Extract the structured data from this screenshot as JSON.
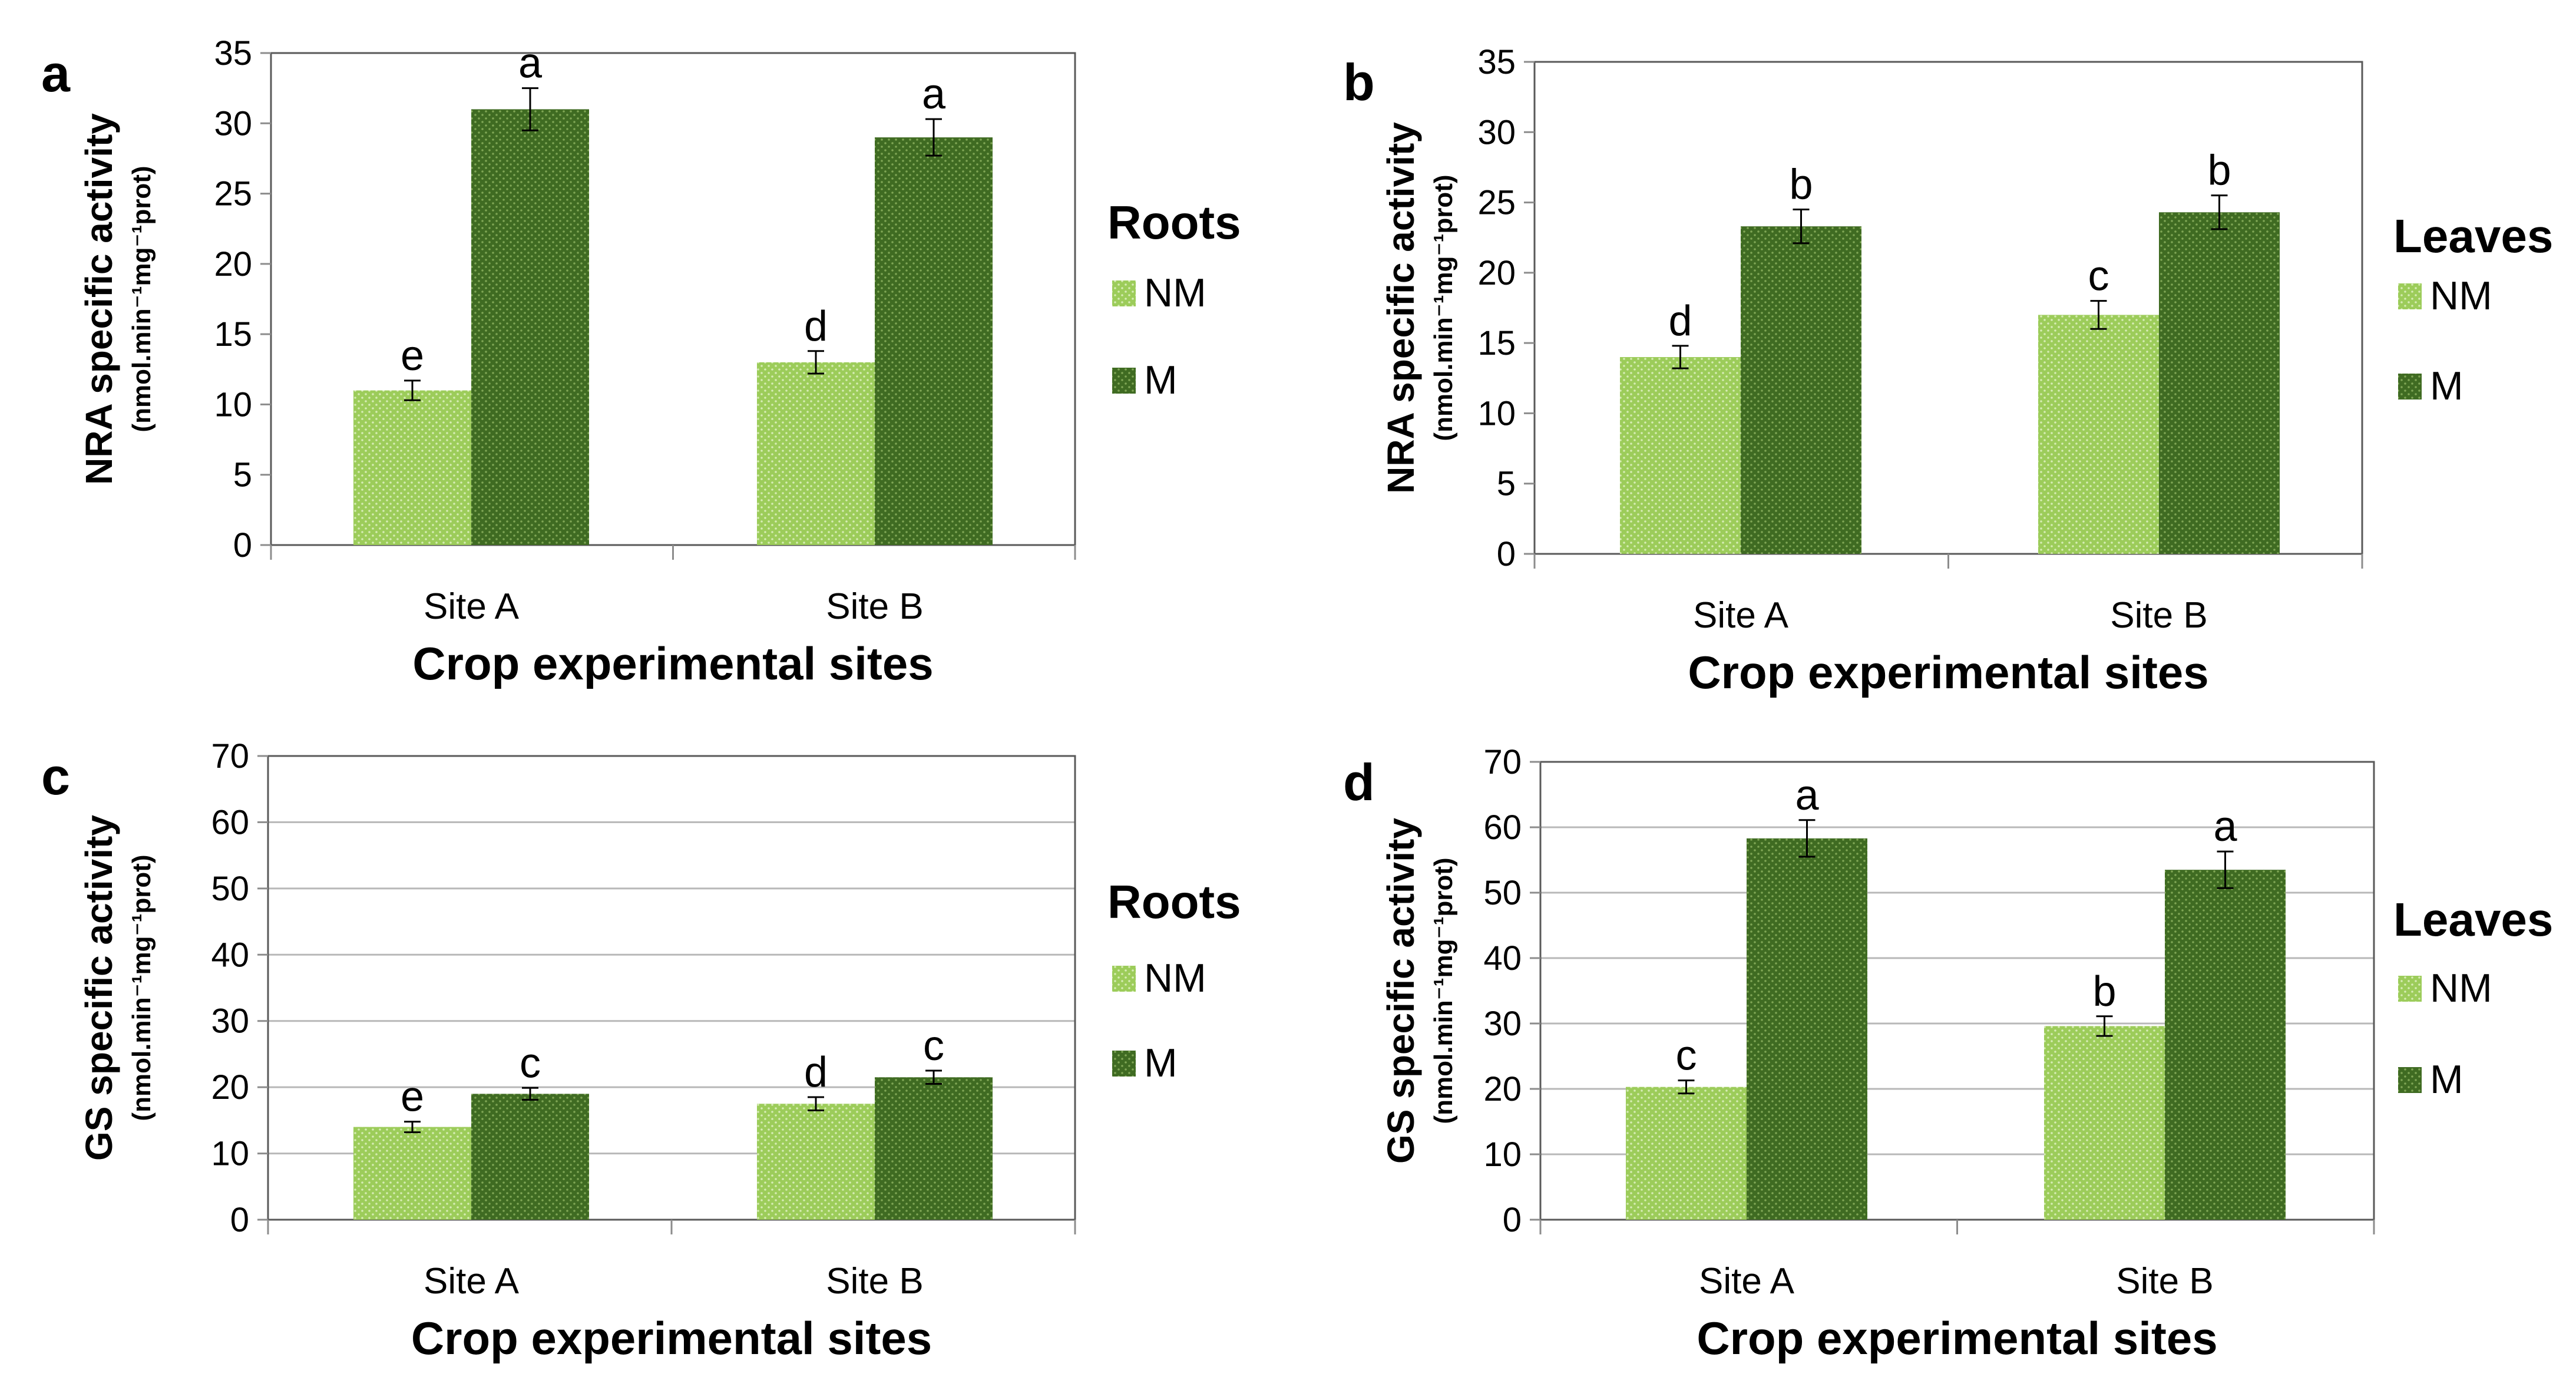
{
  "figure": {
    "colors": {
      "nm": "#9ccc5a",
      "m": "#3f6b22",
      "nm_dot": "#d6ecb4",
      "m_dot": "#7fa655",
      "axis": "#8c8c8c",
      "text": "#000000"
    }
  },
  "chart_data": [
    {
      "panel": "a",
      "type": "bar",
      "tissue_title": "Roots",
      "ylabel": "NRA specific activity",
      "ylabel_unit": "(nmol.min⁻¹mg⁻¹prot)",
      "xlabel": "Crop experimental sites",
      "categories": [
        "Site A",
        "Site B"
      ],
      "ylim": [
        0,
        35
      ],
      "yticks": [
        0,
        5,
        10,
        15,
        20,
        25,
        30,
        35
      ],
      "grid": false,
      "series": [
        {
          "name": "NM",
          "values": [
            11,
            13
          ],
          "errors": [
            0.7,
            0.8
          ],
          "letters": [
            "e",
            "d"
          ]
        },
        {
          "name": "M",
          "values": [
            31,
            29
          ],
          "errors": [
            1.5,
            1.3
          ],
          "letters": [
            "a",
            "a"
          ]
        }
      ]
    },
    {
      "panel": "b",
      "type": "bar",
      "tissue_title": "Leaves",
      "ylabel": "NRA specific activity",
      "ylabel_unit": "(nmol.min⁻¹mg⁻¹prot)",
      "xlabel": "Crop experimental sites",
      "categories": [
        "Site A",
        "Site B"
      ],
      "ylim": [
        0,
        35
      ],
      "yticks": [
        0,
        5,
        10,
        15,
        20,
        25,
        30,
        35
      ],
      "grid": false,
      "series": [
        {
          "name": "NM",
          "values": [
            14,
            17
          ],
          "errors": [
            0.8,
            1.0
          ],
          "letters": [
            "d",
            "c"
          ]
        },
        {
          "name": "M",
          "values": [
            23.3,
            24.3
          ],
          "errors": [
            1.2,
            1.2
          ],
          "letters": [
            "b",
            "b"
          ]
        }
      ]
    },
    {
      "panel": "c",
      "type": "bar",
      "tissue_title": "Roots",
      "ylabel": "GS specific activity",
      "ylabel_unit": "(nmol.min⁻¹mg⁻¹prot)",
      "xlabel": "Crop experimental sites",
      "categories": [
        "Site A",
        "Site B"
      ],
      "ylim": [
        0,
        70
      ],
      "yticks": [
        0,
        10,
        20,
        30,
        40,
        50,
        60,
        70
      ],
      "grid": true,
      "series": [
        {
          "name": "NM",
          "values": [
            14,
            17.5
          ],
          "errors": [
            0.8,
            1.0
          ],
          "letters": [
            "e",
            "d"
          ]
        },
        {
          "name": "M",
          "values": [
            19,
            21.5
          ],
          "errors": [
            0.9,
            1.0
          ],
          "letters": [
            "c",
            "c"
          ]
        }
      ]
    },
    {
      "panel": "d",
      "type": "bar",
      "tissue_title": "Leaves",
      "ylabel": "GS specific activity",
      "ylabel_unit": "(nmol.min⁻¹mg⁻¹prot)",
      "xlabel": "Crop experimental sites",
      "categories": [
        "Site A",
        "Site B"
      ],
      "ylim": [
        0,
        70
      ],
      "yticks": [
        0,
        10,
        20,
        30,
        40,
        50,
        60,
        70
      ],
      "grid": true,
      "series": [
        {
          "name": "NM",
          "values": [
            20.3,
            29.6
          ],
          "errors": [
            1.0,
            1.5
          ],
          "letters": [
            "c",
            "b"
          ]
        },
        {
          "name": "M",
          "values": [
            58.3,
            53.5
          ],
          "errors": [
            2.8,
            2.8
          ],
          "letters": [
            "a",
            "a"
          ]
        }
      ]
    }
  ]
}
